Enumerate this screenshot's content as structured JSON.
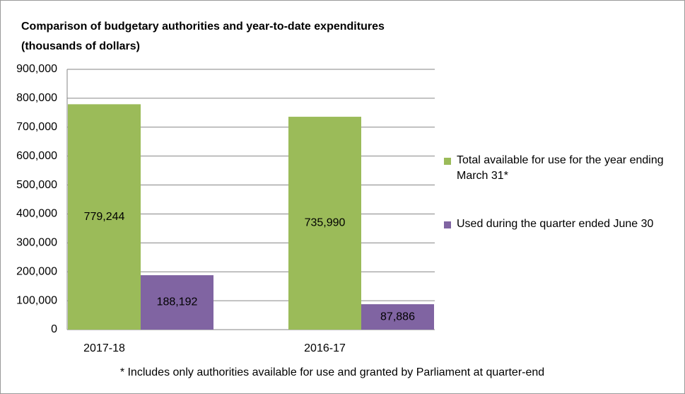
{
  "chart_data": {
    "type": "bar",
    "title": "Comparison of budgetary authorities and year-to-date expenditures",
    "subtitle": "(thousands of dollars)",
    "categories": [
      "2017-18",
      "2016-17"
    ],
    "series": [
      {
        "name": "Total available for use for the year ending  March 31*",
        "color": "#9bbb59",
        "values": [
          779244,
          735990
        ],
        "value_labels": [
          "779,244",
          "735,990"
        ]
      },
      {
        "name": "Used during the quarter ended June 30",
        "color": "#8064a2",
        "values": [
          188192,
          87886
        ],
        "value_labels": [
          "188,192",
          "87,886"
        ]
      }
    ],
    "ylim": [
      0,
      900000
    ],
    "yticks": [
      0,
      {
        "value": 100000,
        "label": "100,000"
      },
      {
        "value": 200000,
        "label": "200,000"
      },
      {
        "value": 300000,
        "label": "300,000"
      },
      {
        "value": 400000,
        "label": "400,000"
      },
      {
        "value": 500000,
        "label": "500,000"
      },
      {
        "value": 600000,
        "label": "600,000"
      },
      {
        "value": 700000,
        "label": "700,000"
      },
      {
        "value": 800000,
        "label": "800,000"
      },
      {
        "value": 900000,
        "label": "900,000"
      }
    ],
    "grid": true,
    "legend": "right",
    "annotation": "* Includes only authorities available for use and granted by Parliament at quarter-end"
  }
}
